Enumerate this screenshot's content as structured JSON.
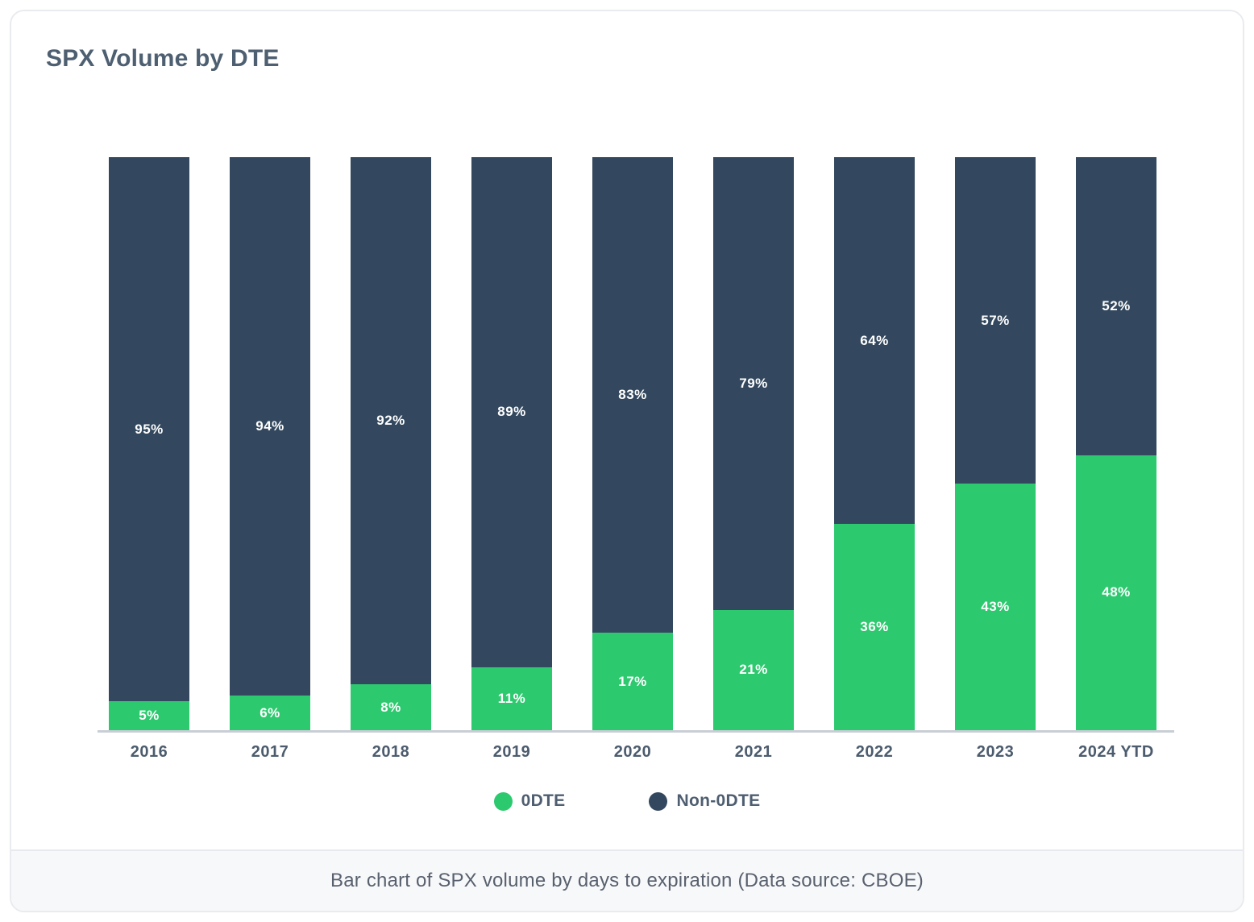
{
  "title": "SPX Volume by DTE",
  "chart_data": {
    "type": "bar",
    "stacked": true,
    "orientation": "vertical",
    "categories": [
      "2016",
      "2017",
      "2018",
      "2019",
      "2020",
      "2021",
      "2022",
      "2023",
      "2024 YTD"
    ],
    "series": [
      {
        "name": "0DTE",
        "color": "#2dc96f",
        "values": [
          5,
          6,
          8,
          11,
          17,
          21,
          36,
          43,
          48
        ]
      },
      {
        "name": "Non-0DTE",
        "color": "#33485e",
        "values": [
          95,
          94,
          92,
          89,
          83,
          79,
          64,
          57,
          52
        ]
      }
    ],
    "value_format": "percent",
    "data_labels": "inside-center, white, bold",
    "title": "SPX Volume by DTE",
    "xlabel": "",
    "ylabel": "",
    "ylim": [
      0,
      100
    ],
    "grid": false,
    "y_axis_visible": false,
    "legend_position": "bottom"
  },
  "legend": {
    "items": [
      {
        "label": "0DTE",
        "color": "#2dc96f"
      },
      {
        "label": "Non-0DTE",
        "color": "#33485e"
      }
    ]
  },
  "caption": "Bar chart of SPX volume by days to expiration (Data source: CBOE)",
  "colors": {
    "odte_green": "#2dc96f",
    "non_odte_navy": "#33485e",
    "title_text": "#4e5f71",
    "axis_line": "#c9ced6",
    "caption_bg": "#f7f8fa",
    "card_border": "#e9ebef"
  }
}
